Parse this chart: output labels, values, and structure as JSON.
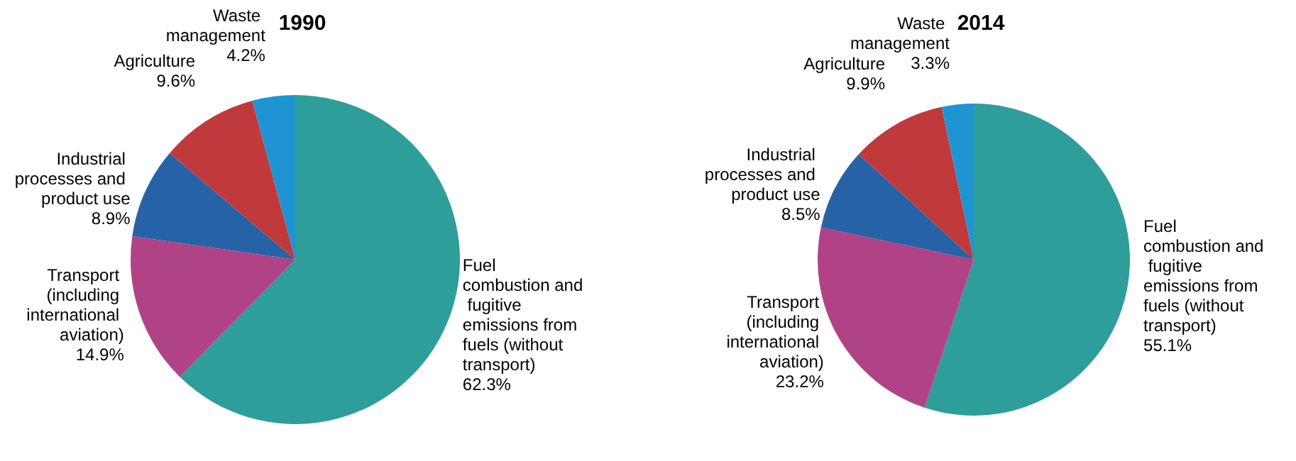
{
  "chart_data": [
    {
      "type": "pie",
      "title": "1990",
      "categories": [
        "Fuel combustion and fugitive emissions from fuels (without transport)",
        "Transport (including international aviation)",
        "Industrial processes and product use",
        "Agriculture",
        "Waste management"
      ],
      "values": [
        62.3,
        14.9,
        8.9,
        9.6,
        4.2
      ],
      "value_labels": [
        "62.3%",
        "14.9%",
        "8.9%",
        "9.6%",
        "4.2%"
      ],
      "colors": [
        "#2e9e9a",
        "#b04386",
        "#2563a6",
        "#c0393b",
        "#1e95d2"
      ]
    },
    {
      "type": "pie",
      "title": "2014",
      "categories": [
        "Fuel combustion and fugitive emissions from fuels (without transport)",
        "Transport (including international aviation)",
        "Industrial processes and product use",
        "Agriculture",
        "Waste management"
      ],
      "values": [
        55.1,
        23.2,
        8.5,
        9.9,
        3.3
      ],
      "value_labels": [
        "55.1%",
        "23.2%",
        "8.5%",
        "9.9%",
        "3.3%"
      ],
      "colors": [
        "#2e9e9a",
        "#b04386",
        "#2563a6",
        "#c0393b",
        "#1e95d2"
      ]
    }
  ]
}
